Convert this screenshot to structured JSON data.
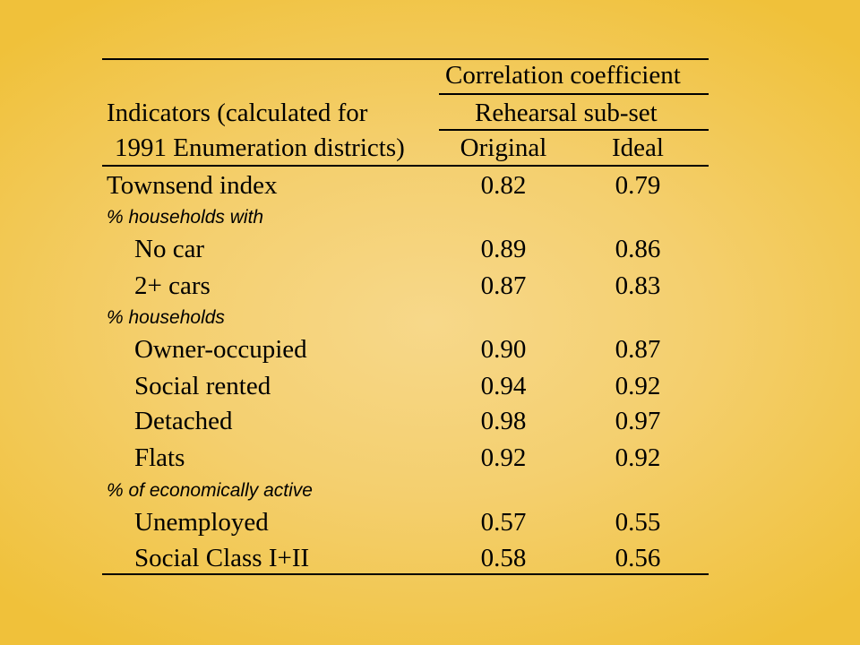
{
  "header": {
    "indicators_line1": "Indicators (calculated for",
    "indicators_line2": "1991 Enumeration districts)",
    "correlation": "Correlation coefficient",
    "subset": "Rehearsal sub-set",
    "col_original": "Original",
    "col_ideal": "Ideal"
  },
  "rows": {
    "townsend": {
      "label": "Townsend index",
      "original": "0.82",
      "ideal": "0.79"
    },
    "group1": "% households with",
    "nocar": {
      "label": "No car",
      "original": "0.89",
      "ideal": "0.86"
    },
    "cars2": {
      "label": "2+ cars",
      "original": "0.87",
      "ideal": "0.83"
    },
    "group2": "% households",
    "owner": {
      "label": "Owner-occupied",
      "original": "0.90",
      "ideal": "0.87"
    },
    "social": {
      "label": "Social rented",
      "original": "0.94",
      "ideal": "0.92"
    },
    "detached": {
      "label": "Detached",
      "original": "0.98",
      "ideal": "0.97"
    },
    "flats": {
      "label": "Flats",
      "original": "0.92",
      "ideal": "0.92"
    },
    "group3": "% of economically active",
    "unemployed": {
      "label": "Unemployed",
      "original": "0.57",
      "ideal": "0.55"
    },
    "socialclass": {
      "label": "Social Class I+II",
      "original": "0.58",
      "ideal": "0.56"
    }
  }
}
